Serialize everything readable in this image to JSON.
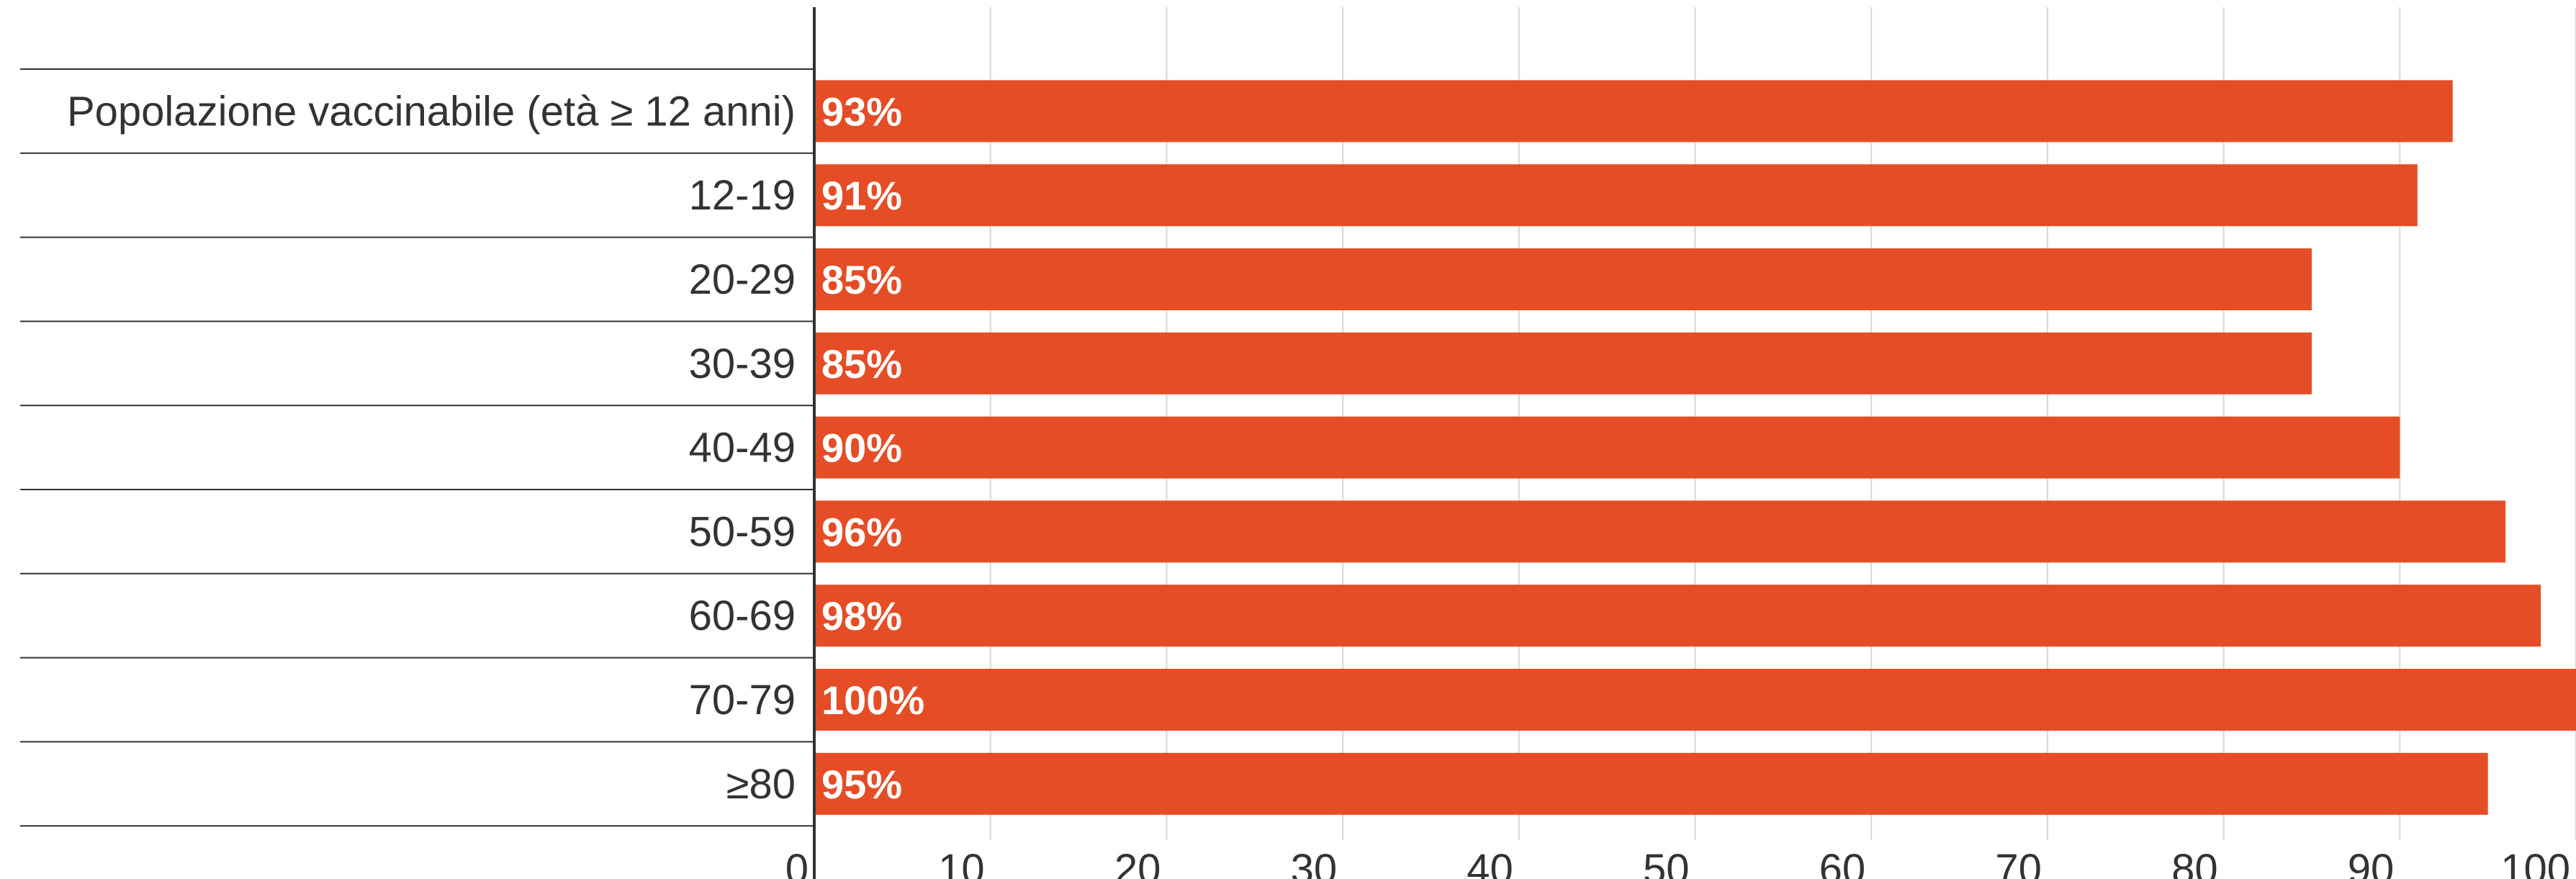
{
  "chart_data": {
    "type": "bar",
    "orientation": "horizontal",
    "title": "",
    "xlabel": "",
    "ylabel": "",
    "categories": [
      "Popolazione vaccinabile (età ≥ 12 anni)",
      "12-19",
      "20-29",
      "30-39",
      "40-49",
      "50-59",
      "60-69",
      "70-79",
      "≥80"
    ],
    "values": [
      93,
      91,
      85,
      85,
      90,
      96,
      98,
      100,
      95
    ],
    "data_labels": [
      "93%",
      "91%",
      "85%",
      "85%",
      "90%",
      "96%",
      "98%",
      "100%",
      "95%"
    ],
    "x_ticks": [
      0,
      10,
      20,
      30,
      40,
      50,
      60,
      70,
      80,
      90,
      100
    ],
    "xlim": [
      0,
      100
    ],
    "grid": true,
    "legend": "none",
    "bar_color": "#e44d26"
  }
}
